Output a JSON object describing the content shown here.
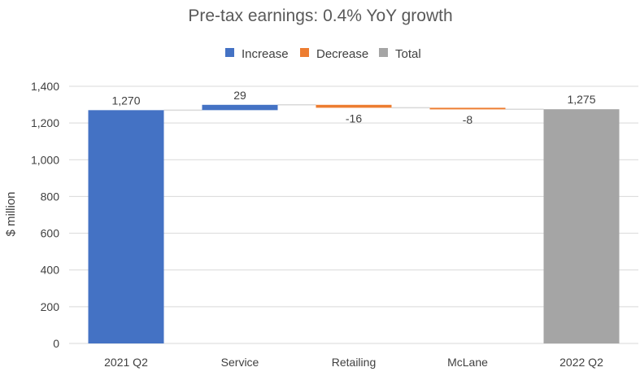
{
  "chart_data": {
    "type": "waterfall",
    "title": "Pre-tax earnings: 0.4% YoY growth",
    "ylabel": "$ million",
    "xlabel": "",
    "ylim": [
      0,
      1400
    ],
    "yticks": [
      0,
      200,
      400,
      600,
      800,
      1000,
      1200,
      1400
    ],
    "ytick_labels": [
      "0",
      "200",
      "400",
      "600",
      "800",
      "1,000",
      "1,200",
      "1,400"
    ],
    "grid": true,
    "legend_position": "top",
    "legend": [
      {
        "label": "Increase",
        "color": "#4472C4"
      },
      {
        "label": "Decrease",
        "color": "#ED7D31"
      },
      {
        "label": "Total",
        "color": "#A5A5A5"
      }
    ],
    "categories": [
      "2021 Q2",
      "Service",
      "Retailing",
      "McLane",
      "2022 Q2"
    ],
    "values": [
      1270,
      29,
      -16,
      -8,
      1275
    ],
    "kinds": [
      "increase",
      "increase",
      "decrease",
      "decrease",
      "total"
    ],
    "data_labels": [
      "1,270",
      "29",
      "-16",
      "-8",
      "1,275"
    ]
  }
}
